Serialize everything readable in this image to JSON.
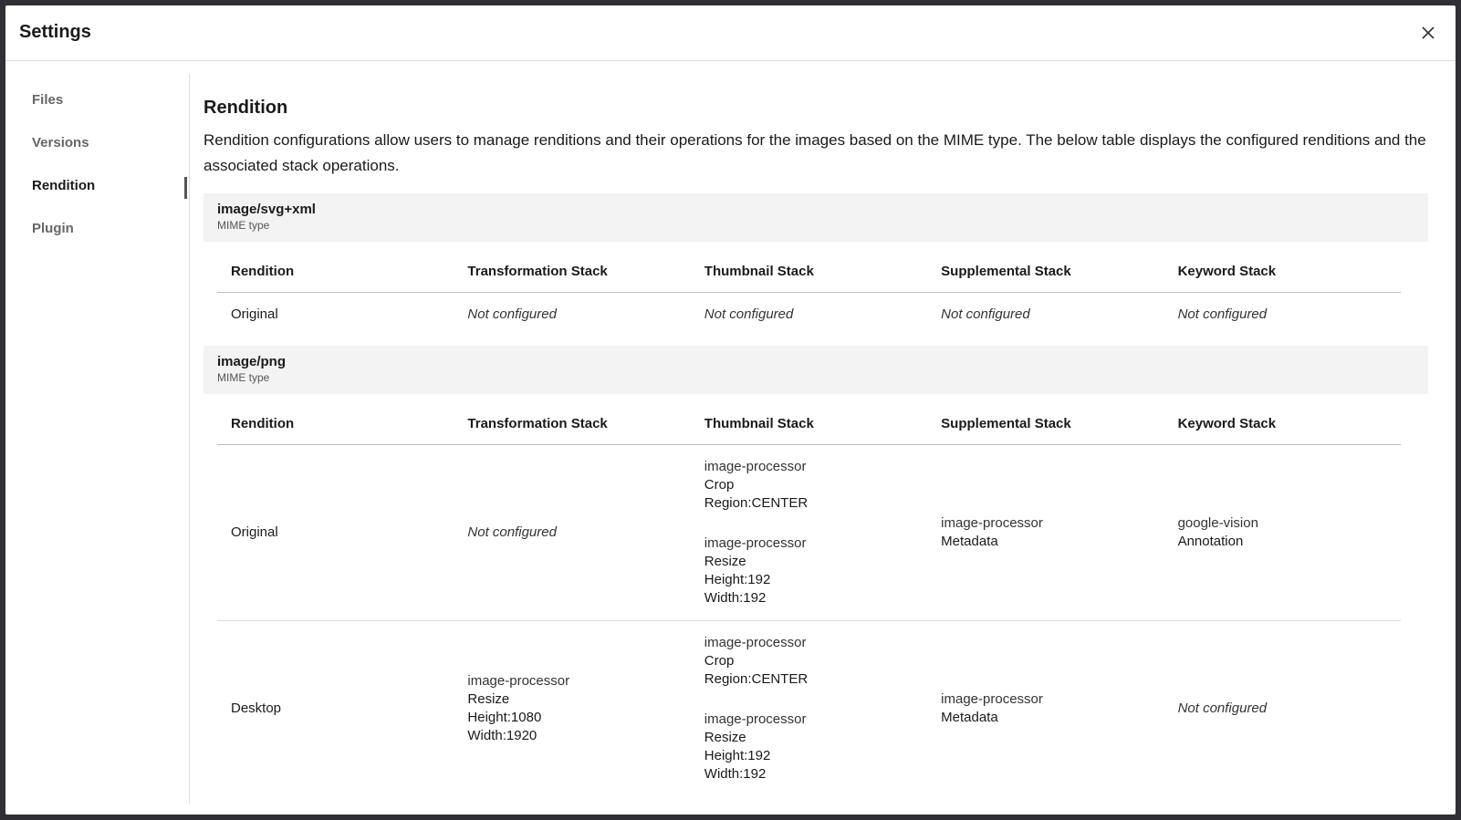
{
  "header": {
    "title": "Settings"
  },
  "nav": [
    "Files",
    "Versions",
    "Rendition",
    "Plugin"
  ],
  "content": {
    "title": "Rendition",
    "description": "Rendition configurations allow users to manage renditions and their operations for the images based on the MIME type. The below table displays the configured renditions and the associated stack operations."
  },
  "sections": [
    {
      "mime": "image/svg+xml",
      "mime_label": "MIME type",
      "columns": [
        "Rendition",
        "Transformation Stack",
        "Thumbnail Stack",
        "Supplemental Stack",
        "Keyword Stack"
      ],
      "rows": [
        [
          "Original",
          "Not configured",
          "Not configured",
          "Not configured",
          "Not configured"
        ]
      ]
    },
    {
      "mime": "image/png",
      "mime_label": "MIME type",
      "columns": [
        "Rendition",
        "Transformation Stack",
        "Thumbnail Stack",
        "Supplemental Stack",
        "Keyword Stack"
      ],
      "rows": [
        [
          "Original",
          "Not configured",
          [
            [
              "image-processor",
              "Crop",
              "Region:CENTER"
            ],
            [
              "image-processor",
              "Resize",
              "Height:192",
              "Width:192"
            ]
          ],
          [
            [
              "image-processor",
              "Metadata"
            ]
          ],
          [
            [
              "google-vision",
              "Annotation"
            ]
          ]
        ],
        [
          "Desktop",
          [
            [
              "image-processor",
              "Resize",
              "Height:1080",
              "Width:1920"
            ]
          ],
          [
            [
              "image-processor",
              "Crop",
              "Region:CENTER"
            ],
            [
              "image-processor",
              "Resize",
              "Height:192",
              "Width:192"
            ]
          ],
          [
            [
              "image-processor",
              "Metadata"
            ]
          ],
          "Not configured"
        ]
      ]
    }
  ]
}
